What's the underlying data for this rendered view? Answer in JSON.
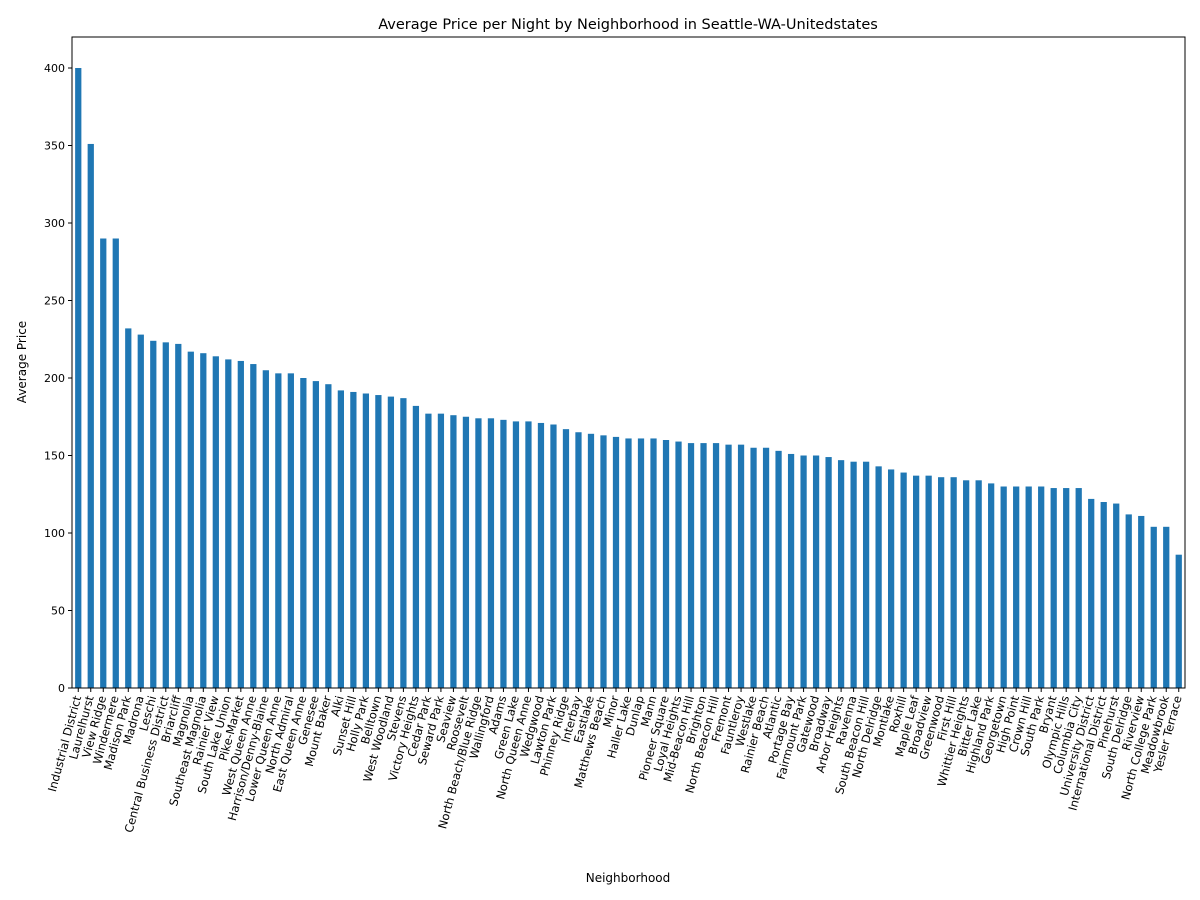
{
  "chart_data": {
    "type": "bar",
    "title": "Average Price per Night by Neighborhood in Seattle-WA-Unitedstates",
    "x_label": "Neighborhood",
    "y_label": "Average Price",
    "categories": [
      "Industrial District",
      "Laurelhurst",
      "View Ridge",
      "Windermere",
      "Madison Park",
      "Madrona",
      "Leschi",
      "Central Business District",
      "Briarcliff",
      "Magnolia",
      "Southeast Magnolia",
      "Rainier View",
      "South Lake Union",
      "Pike-Market",
      "West Queen Anne",
      "Harrison/Denny-Blaine",
      "Lower Queen Anne",
      "North Admiral",
      "East Queen Anne",
      "Genesee",
      "Mount Baker",
      "Alki",
      "Sunset Hill",
      "Holly Park",
      "Belltown",
      "West Woodland",
      "Stevens",
      "Victory Heights",
      "Cedar Park",
      "Seward Park",
      "Seaview",
      "Roosevelt",
      "North Beach/Blue Ridge",
      "Wallingford",
      "Adams",
      "Green Lake",
      "North Queen Anne",
      "Wedgwood",
      "Lawton Park",
      "Phinney Ridge",
      "Interbay",
      "Eastlake",
      "Matthews Beach",
      "Minor",
      "Haller Lake",
      "Dunlap",
      "Mann",
      "Pioneer Square",
      "Loyal Heights",
      "Mid-Beacon Hill",
      "Brighton",
      "North Beacon Hill",
      "Fremont",
      "Fauntleroy",
      "Westlake",
      "Rainier Beach",
      "Atlantic",
      "Portage Bay",
      "Fairmount Park",
      "Gatewood",
      "Broadway",
      "Arbor Heights",
      "Ravenna",
      "South Beacon Hill",
      "North Delridge",
      "Montlake",
      "Roxhill",
      "Maple Leaf",
      "Broadview",
      "Greenwood",
      "First Hill",
      "Whittier Heights",
      "Bitter Lake",
      "Highland Park",
      "Georgetown",
      "High Point",
      "Crown Hill",
      "South Park",
      "Bryant",
      "Olympic Hills",
      "Columbia City",
      "University District",
      "International District",
      "Pinehurst",
      "South Delridge",
      "Riverview",
      "North College Park",
      "Meadowbrook",
      "Yesler Terrace"
    ],
    "values": [
      400,
      351,
      290,
      290,
      232,
      228,
      224,
      223,
      222,
      217,
      216,
      214,
      212,
      211,
      209,
      205,
      203,
      203,
      200,
      198,
      196,
      192,
      191,
      190,
      189,
      188,
      187,
      182,
      177,
      177,
      176,
      175,
      174,
      174,
      173,
      172,
      172,
      171,
      170,
      167,
      165,
      164,
      163,
      162,
      161,
      161,
      161,
      160,
      159,
      158,
      158,
      158,
      157,
      157,
      155,
      155,
      153,
      151,
      150,
      150,
      149,
      147,
      146,
      146,
      143,
      141,
      139,
      137,
      137,
      136,
      136,
      134,
      134,
      132,
      130,
      130,
      130,
      130,
      129,
      129,
      129,
      122,
      120,
      119,
      112,
      111,
      104,
      104,
      86
    ],
    "color": "#1f77b4",
    "ylim": [
      0,
      420
    ],
    "yticks": [
      0,
      50,
      100,
      150,
      200,
      250,
      300,
      350,
      400
    ],
    "grid": false
  }
}
